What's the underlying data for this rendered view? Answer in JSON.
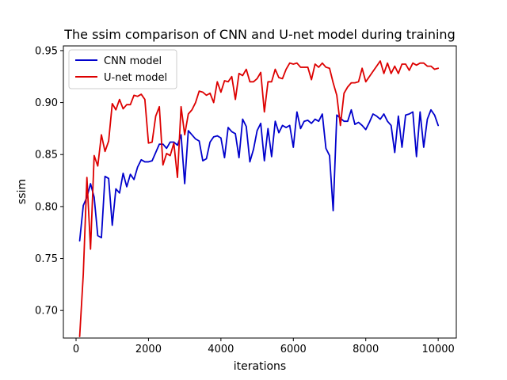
{
  "chart_data": {
    "type": "line",
    "title": "The ssim comparison of CNN and U-net model during training",
    "xlabel": "iterations",
    "ylabel": "ssim",
    "xlim": [
      -350,
      10500
    ],
    "ylim": [
      0.6735,
      0.9545
    ],
    "xticks": [
      0,
      2000,
      4000,
      6000,
      8000,
      10000
    ],
    "xtick_labels": [
      "0",
      "2000",
      "4000",
      "6000",
      "8000",
      "10000"
    ],
    "yticks": [
      0.7,
      0.75,
      0.8,
      0.85,
      0.9,
      0.95
    ],
    "ytick_labels": [
      "0.70",
      "0.75",
      "0.80",
      "0.85",
      "0.90",
      "0.95"
    ],
    "grid": false,
    "legend_position": "top-left",
    "x": [
      100,
      200,
      300,
      400,
      500,
      600,
      700,
      800,
      900,
      1000,
      1100,
      1200,
      1300,
      1400,
      1500,
      1600,
      1700,
      1800,
      1900,
      2000,
      2100,
      2200,
      2300,
      2400,
      2500,
      2600,
      2700,
      2800,
      2900,
      3000,
      3100,
      3200,
      3300,
      3400,
      3500,
      3600,
      3700,
      3800,
      3900,
      4000,
      4100,
      4200,
      4300,
      4400,
      4500,
      4600,
      4700,
      4800,
      4900,
      5000,
      5100,
      5200,
      5300,
      5400,
      5500,
      5600,
      5700,
      5800,
      5900,
      6000,
      6100,
      6200,
      6300,
      6400,
      6500,
      6600,
      6700,
      6800,
      6900,
      7000,
      7100,
      7200,
      7300,
      7400,
      7500,
      7600,
      7700,
      7800,
      7900,
      8000,
      8100,
      8200,
      8300,
      8400,
      8500,
      8600,
      8700,
      8800,
      8900,
      9000,
      9100,
      9200,
      9300,
      9400,
      9500,
      9600,
      9700,
      9800,
      9900,
      10000
    ],
    "series": [
      {
        "name": "CNN model",
        "color": "#0000cc",
        "values": [
          0.767,
          0.801,
          0.809,
          0.822,
          0.809,
          0.772,
          0.77,
          0.829,
          0.827,
          0.782,
          0.817,
          0.813,
          0.832,
          0.819,
          0.831,
          0.826,
          0.838,
          0.845,
          0.843,
          0.843,
          0.844,
          0.852,
          0.86,
          0.86,
          0.856,
          0.862,
          0.862,
          0.859,
          0.869,
          0.822,
          0.873,
          0.869,
          0.865,
          0.863,
          0.844,
          0.846,
          0.862,
          0.867,
          0.868,
          0.866,
          0.847,
          0.876,
          0.872,
          0.87,
          0.847,
          0.884,
          0.877,
          0.843,
          0.855,
          0.873,
          0.88,
          0.844,
          0.875,
          0.848,
          0.882,
          0.871,
          0.878,
          0.876,
          0.878,
          0.857,
          0.891,
          0.875,
          0.882,
          0.883,
          0.88,
          0.884,
          0.882,
          0.889,
          0.856,
          0.849,
          0.796,
          0.888,
          0.885,
          0.882,
          0.882,
          0.893,
          0.879,
          0.881,
          0.878,
          0.874,
          0.881,
          0.889,
          0.887,
          0.884,
          0.889,
          0.882,
          0.878,
          0.852,
          0.887,
          0.857,
          0.888,
          0.889,
          0.891,
          0.848,
          0.891,
          0.857,
          0.884,
          0.893,
          0.888,
          0.878
        ]
      },
      {
        "name": "U-net model",
        "color": "#dd0000",
        "values": [
          0.675,
          0.735,
          0.828,
          0.759,
          0.849,
          0.839,
          0.869,
          0.853,
          0.863,
          0.899,
          0.893,
          0.903,
          0.894,
          0.898,
          0.898,
          0.907,
          0.906,
          0.908,
          0.903,
          0.861,
          0.862,
          0.887,
          0.896,
          0.84,
          0.851,
          0.849,
          0.861,
          0.828,
          0.896,
          0.869,
          0.889,
          0.893,
          0.9,
          0.911,
          0.91,
          0.907,
          0.909,
          0.9,
          0.92,
          0.91,
          0.921,
          0.92,
          0.925,
          0.903,
          0.928,
          0.926,
          0.932,
          0.92,
          0.92,
          0.923,
          0.929,
          0.891,
          0.92,
          0.92,
          0.932,
          0.924,
          0.923,
          0.932,
          0.938,
          0.937,
          0.938,
          0.934,
          0.934,
          0.934,
          0.922,
          0.937,
          0.934,
          0.938,
          0.934,
          0.933,
          0.919,
          0.907,
          0.878,
          0.909,
          0.915,
          0.919,
          0.919,
          0.92,
          0.933,
          0.92,
          0.925,
          0.93,
          0.935,
          0.94,
          0.928,
          0.938,
          0.928,
          0.935,
          0.928,
          0.937,
          0.937,
          0.931,
          0.938,
          0.936,
          0.938,
          0.938,
          0.935,
          0.935,
          0.932,
          0.933
        ]
      }
    ]
  }
}
